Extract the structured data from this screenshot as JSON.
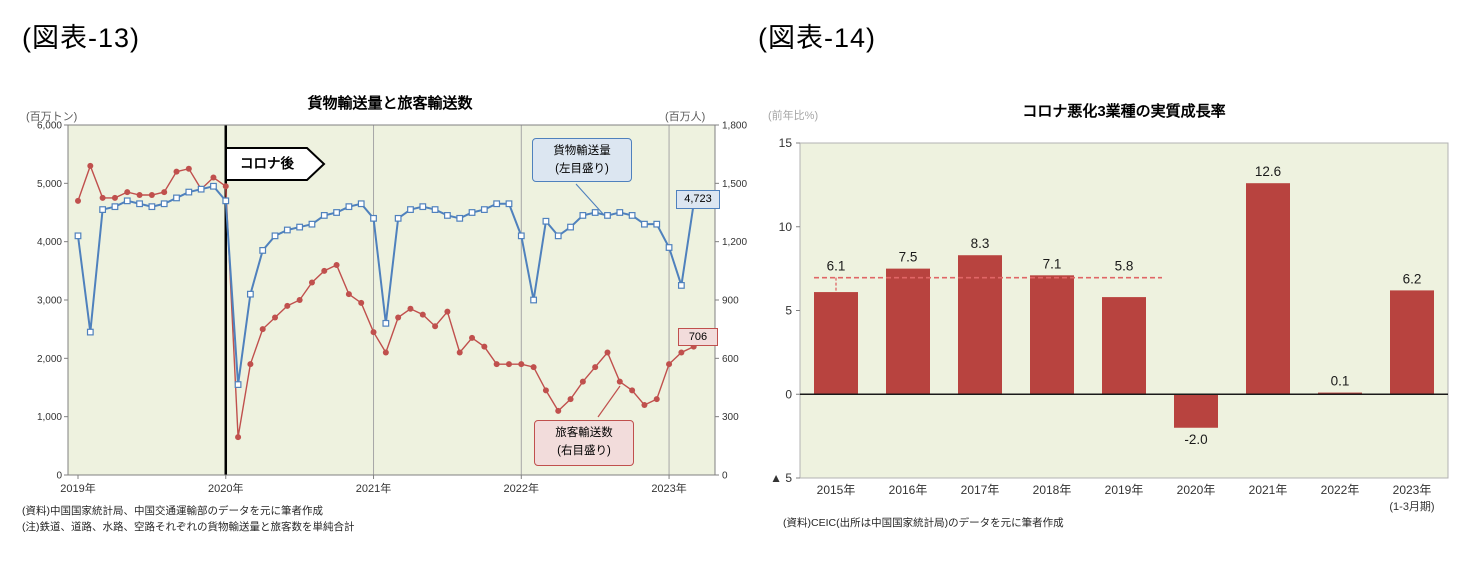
{
  "figure13": {
    "tag": "(図表-13)",
    "callouts": {
      "freight": {
        "line1": "貨物輸送量",
        "line2": "(左目盛り)",
        "end_value": "4,723"
      },
      "passenger": {
        "line1": "旅客輸送数",
        "line2": "(右目盛り)",
        "end_value": "706"
      }
    },
    "notes": [
      "(資料)中国国家統計局、中国交通運輸部のデータを元に筆者作成",
      "(注)鉄道、道路、水路、空路それぞれの貨物輸送量と旅客数を単純合計"
    ]
  },
  "figure14": {
    "tag": "(図表-14)",
    "note": "(資料)CEIC(出所は中国国家統計局)のデータを元に筆者作成"
  },
  "chart_data": [
    {
      "type": "line",
      "title": "貨物輸送量と旅客輸送数",
      "x_start": "2019-01",
      "x_interval": "monthly",
      "x_tick_labels": [
        "2019年",
        "2020年",
        "2021年",
        "2022年",
        "2023年"
      ],
      "x_tick_month_indices": [
        0,
        12,
        24,
        36,
        48
      ],
      "event_line": {
        "label": "コロナ後",
        "month_index": 12
      },
      "left_axis": {
        "unit": "(百万トン)",
        "lim": [
          0,
          6000
        ],
        "ticks": [
          0,
          1000,
          2000,
          3000,
          4000,
          5000,
          6000
        ],
        "tick_labels": [
          "0",
          "1,000",
          "2,000",
          "3,000",
          "4,000",
          "5,000",
          "6,000"
        ]
      },
      "right_axis": {
        "unit": "(百万人)",
        "lim": [
          0,
          1800
        ],
        "ticks": [
          0,
          300,
          600,
          900,
          1200,
          1500,
          1800
        ],
        "tick_labels": [
          "0",
          "300",
          "600",
          "900",
          "1,200",
          "1,500",
          "1,800"
        ]
      },
      "series": [
        {
          "name": "貨物輸送量(左目盛り)",
          "axis": "left",
          "color": "#4f81bd",
          "marker": "square",
          "values": [
            4100,
            2450,
            4550,
            4600,
            4700,
            4650,
            4600,
            4650,
            4750,
            4850,
            4900,
            4950,
            4700,
            1550,
            3100,
            3850,
            4100,
            4200,
            4250,
            4300,
            4450,
            4500,
            4600,
            4650,
            4400,
            2600,
            4400,
            4550,
            4600,
            4550,
            4450,
            4400,
            4500,
            4550,
            4650,
            4650,
            4100,
            3000,
            4350,
            4100,
            4250,
            4450,
            4500,
            4450,
            4500,
            4450,
            4300,
            4300,
            3900,
            3250,
            4650,
            4723
          ]
        },
        {
          "name": "旅客輸送数(右目盛り)",
          "axis": "right",
          "color": "#c0504d",
          "marker": "circle",
          "values": [
            1410,
            1590,
            1425,
            1425,
            1455,
            1440,
            1440,
            1455,
            1560,
            1575,
            1470,
            1530,
            1485,
            195,
            570,
            750,
            810,
            870,
            900,
            990,
            1050,
            1080,
            930,
            885,
            735,
            630,
            810,
            855,
            825,
            765,
            840,
            630,
            705,
            660,
            570,
            570,
            570,
            555,
            435,
            330,
            390,
            480,
            555,
            630,
            480,
            435,
            360,
            390,
            570,
            630,
            660,
            706
          ]
        }
      ]
    },
    {
      "type": "bar",
      "title": "コロナ悪化3業種の実質成長率",
      "ylabel": "(前年比%)",
      "categories": [
        "2015年",
        "2016年",
        "2017年",
        "2018年",
        "2019年",
        "2020年",
        "2021年",
        "2022年",
        "2023年"
      ],
      "category_sublabels": [
        "",
        "",
        "",
        "",
        "",
        "",
        "",
        "",
        "(1-3月期)"
      ],
      "values": [
        6.1,
        7.5,
        8.3,
        7.1,
        5.8,
        -2.0,
        12.6,
        0.1,
        6.2
      ],
      "value_labels": [
        "6.1",
        "7.5",
        "8.3",
        "7.1",
        "5.8",
        "-2.0",
        "12.6",
        "0.1",
        "6.2"
      ],
      "ylim": [
        -5,
        15
      ],
      "yticks": [
        15,
        10,
        5,
        0,
        -5
      ],
      "ytick_labels": [
        "15",
        "10",
        "5",
        "0",
        "▲ 5"
      ],
      "bar_color": "#b8433f",
      "grid": false,
      "legend": "none",
      "avg_line": {
        "value": 6.96,
        "from_category": 0,
        "to_category": 4,
        "color": "#e06666",
        "style": "dashed"
      }
    }
  ]
}
